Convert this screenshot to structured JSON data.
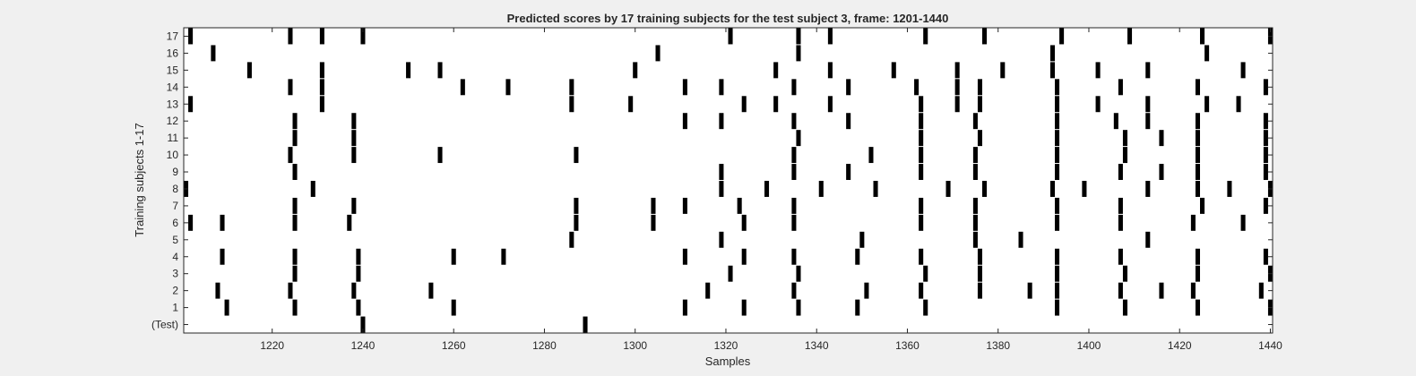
{
  "chart_data": {
    "type": "heatmap",
    "title": "Predicted scores by 17 training subjects for the test subject 3, frame: 1201-1440",
    "xlabel": "Samples",
    "ylabel": "Training subjects 1-17",
    "xlim": [
      1200.5,
      1440.5
    ],
    "xticks": [
      1220,
      1240,
      1260,
      1280,
      1300,
      1320,
      1340,
      1360,
      1380,
      1400,
      1420,
      1440
    ],
    "rows": [
      "(Test)",
      "1",
      "2",
      "3",
      "4",
      "5",
      "6",
      "7",
      "8",
      "9",
      "10",
      "11",
      "12",
      "13",
      "14",
      "15",
      "16",
      "17"
    ],
    "mark_color": "#000000",
    "background_color": "#ffffff",
    "grid": false,
    "marks": [
      {
        "row": "(Test)",
        "x": [
          1240,
          1289
        ]
      },
      {
        "row": "1",
        "x": [
          1210,
          1225,
          1239,
          1260,
          1311,
          1324,
          1336,
          1349,
          1364,
          1393,
          1408,
          1424,
          1440
        ]
      },
      {
        "row": "2",
        "x": [
          1208,
          1224,
          1238,
          1255,
          1316,
          1335,
          1351,
          1363,
          1376,
          1387,
          1393,
          1407,
          1416,
          1423,
          1438
        ]
      },
      {
        "row": "3",
        "x": [
          1225,
          1239,
          1321,
          1336,
          1364,
          1376,
          1393,
          1408,
          1424,
          1440
        ]
      },
      {
        "row": "4",
        "x": [
          1209,
          1225,
          1239,
          1260,
          1271,
          1311,
          1324,
          1335,
          1349,
          1363,
          1376,
          1393,
          1407,
          1424,
          1439
        ]
      },
      {
        "row": "5",
        "x": [
          1286,
          1319,
          1350,
          1375,
          1385,
          1413
        ]
      },
      {
        "row": "6",
        "x": [
          1202,
          1209,
          1225,
          1237,
          1287,
          1304,
          1324,
          1335,
          1363,
          1375,
          1393,
          1407,
          1423,
          1434
        ]
      },
      {
        "row": "7",
        "x": [
          1225,
          1238,
          1287,
          1304,
          1311,
          1323,
          1335,
          1363,
          1375,
          1393,
          1407,
          1425,
          1439
        ]
      },
      {
        "row": "8",
        "x": [
          1201,
          1229,
          1319,
          1329,
          1341,
          1353,
          1369,
          1377,
          1392,
          1399,
          1413,
          1424,
          1431,
          1440
        ]
      },
      {
        "row": "9",
        "x": [
          1225,
          1319,
          1335,
          1347,
          1363,
          1375,
          1393,
          1407,
          1416,
          1424,
          1439
        ]
      },
      {
        "row": "10",
        "x": [
          1224,
          1238,
          1257,
          1287,
          1335,
          1352,
          1363,
          1375,
          1393,
          1408,
          1424,
          1439
        ]
      },
      {
        "row": "11",
        "x": [
          1225,
          1238,
          1336,
          1363,
          1376,
          1393,
          1408,
          1416,
          1424,
          1439
        ]
      },
      {
        "row": "12",
        "x": [
          1225,
          1238,
          1311,
          1319,
          1335,
          1347,
          1363,
          1375,
          1393,
          1406,
          1413,
          1424,
          1439
        ]
      },
      {
        "row": "13",
        "x": [
          1202,
          1231,
          1286,
          1299,
          1324,
          1331,
          1343,
          1363,
          1371,
          1376,
          1393,
          1402,
          1413,
          1426,
          1433
        ]
      },
      {
        "row": "14",
        "x": [
          1224,
          1231,
          1262,
          1272,
          1286,
          1311,
          1319,
          1335,
          1347,
          1362,
          1371,
          1376,
          1393,
          1407,
          1424,
          1439
        ]
      },
      {
        "row": "15",
        "x": [
          1215,
          1231,
          1250,
          1257,
          1300,
          1331,
          1343,
          1357,
          1371,
          1381,
          1392,
          1402,
          1413,
          1434
        ]
      },
      {
        "row": "16",
        "x": [
          1207,
          1305,
          1336,
          1392,
          1426
        ]
      },
      {
        "row": "17",
        "x": [
          1202,
          1224,
          1231,
          1240,
          1321,
          1336,
          1343,
          1364,
          1377,
          1394,
          1409,
          1425,
          1440
        ]
      }
    ]
  }
}
